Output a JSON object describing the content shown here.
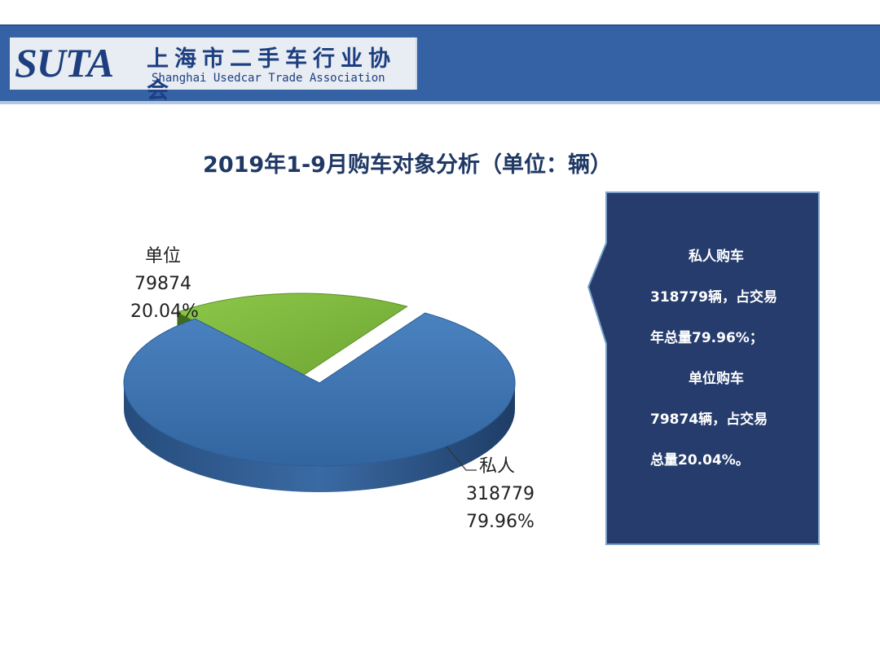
{
  "header": {
    "logo_mark": "SUTA",
    "org_name_cn": "上海市二手车行业协会",
    "org_name_en": "Shanghai Usedcar Trade Association",
    "background_color": "#3561a5"
  },
  "chart_data": {
    "type": "pie",
    "title": "2019年1-9月购车对象分析（单位：辆）",
    "slices": [
      {
        "name": "单位",
        "value": 79874,
        "percent": "20.04%",
        "color": "#7ab13e"
      },
      {
        "name": "私人",
        "value": 318779,
        "percent": "79.96%",
        "color": "#3b6ea8"
      }
    ],
    "style": "3d-exploded"
  },
  "callout": {
    "lines": [
      "私人购车",
      "318779辆，占交易",
      "年总量79.96%；",
      "单位购车",
      "79874辆，占交易",
      "总量20.04%。"
    ],
    "background_color": "#253c6d"
  }
}
